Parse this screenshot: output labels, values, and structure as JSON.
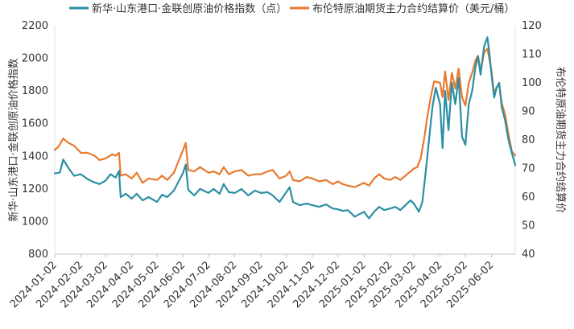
{
  "chart_data": {
    "type": "line",
    "legend": {
      "placement": "top",
      "entries": [
        {
          "label": "新华·山东港口·金联创原油价格指数（点）",
          "color": "#2a8fa3"
        },
        {
          "label": "布伦特原油期货主力合约结算价（美元/桶）",
          "color": "#e8792e"
        }
      ]
    },
    "y_left": {
      "label": "新华·山东港口·金联创原油价格指数",
      "ylim": [
        800,
        2200
      ],
      "ticks": [
        "800",
        "1000",
        "1200",
        "1400",
        "1600",
        "1800",
        "2000",
        "2200"
      ]
    },
    "y_right": {
      "label": "布伦特原油期货主力合约结算价",
      "ylim": [
        40,
        120
      ],
      "ticks": [
        "40",
        "50",
        "60",
        "70",
        "80",
        "90",
        "100",
        "110",
        "120"
      ]
    },
    "x_ticks": [
      "2024-01-02",
      "2024-02-02",
      "2024-03-02",
      "2024-04-02",
      "2024-05-02",
      "2024-06-02",
      "2024-07-02",
      "2024-08-02",
      "2024-09-02",
      "2024-10-02",
      "2024-11-02",
      "2024-12-02",
      "2025-01-02",
      "2025-02-02",
      "2025-03-02",
      "2025-04-02",
      "2025-05-02",
      "2025-06-02"
    ],
    "x_range": [
      "2024-01-02",
      "2025-06-30"
    ],
    "grid": false,
    "series": [
      {
        "name": "新华·山东港口·金联创原油价格指数（点）",
        "axis": "left",
        "color": "#2a8fa3",
        "points": [
          [
            "2024-01-02",
            1295
          ],
          [
            "2024-01-08",
            1300
          ],
          [
            "2024-01-12",
            1380
          ],
          [
            "2024-01-18",
            1330
          ],
          [
            "2024-01-25",
            1280
          ],
          [
            "2024-02-02",
            1290
          ],
          [
            "2024-02-10",
            1260
          ],
          [
            "2024-02-18",
            1240
          ],
          [
            "2024-02-24",
            1230
          ],
          [
            "2024-03-02",
            1250
          ],
          [
            "2024-03-08",
            1290
          ],
          [
            "2024-03-14",
            1270
          ],
          [
            "2024-03-18",
            1310
          ],
          [
            "2024-03-20",
            1150
          ],
          [
            "2024-03-26",
            1170
          ],
          [
            "2024-04-02",
            1140
          ],
          [
            "2024-04-08",
            1170
          ],
          [
            "2024-04-15",
            1130
          ],
          [
            "2024-04-22",
            1150
          ],
          [
            "2024-05-02",
            1120
          ],
          [
            "2024-05-08",
            1165
          ],
          [
            "2024-05-14",
            1150
          ],
          [
            "2024-05-22",
            1190
          ],
          [
            "2024-05-28",
            1250
          ],
          [
            "2024-06-02",
            1300
          ],
          [
            "2024-06-05",
            1350
          ],
          [
            "2024-06-08",
            1195
          ],
          [
            "2024-06-15",
            1160
          ],
          [
            "2024-06-22",
            1200
          ],
          [
            "2024-07-02",
            1175
          ],
          [
            "2024-07-08",
            1200
          ],
          [
            "2024-07-15",
            1170
          ],
          [
            "2024-07-20",
            1230
          ],
          [
            "2024-07-26",
            1180
          ],
          [
            "2024-08-02",
            1175
          ],
          [
            "2024-08-10",
            1200
          ],
          [
            "2024-08-18",
            1160
          ],
          [
            "2024-08-26",
            1190
          ],
          [
            "2024-09-02",
            1175
          ],
          [
            "2024-09-10",
            1180
          ],
          [
            "2024-09-16",
            1160
          ],
          [
            "2024-09-24",
            1120
          ],
          [
            "2024-10-02",
            1180
          ],
          [
            "2024-10-06",
            1210
          ],
          [
            "2024-10-10",
            1120
          ],
          [
            "2024-10-18",
            1100
          ],
          [
            "2024-10-26",
            1110
          ],
          [
            "2024-11-02",
            1100
          ],
          [
            "2024-11-10",
            1090
          ],
          [
            "2024-11-18",
            1105
          ],
          [
            "2024-11-26",
            1080
          ],
          [
            "2024-12-02",
            1075
          ],
          [
            "2024-12-08",
            1065
          ],
          [
            "2024-12-14",
            1070
          ],
          [
            "2024-12-22",
            1030
          ],
          [
            "2025-01-02",
            1060
          ],
          [
            "2025-01-08",
            1020
          ],
          [
            "2025-01-14",
            1060
          ],
          [
            "2025-01-20",
            1090
          ],
          [
            "2025-01-26",
            1070
          ],
          [
            "2025-02-02",
            1080
          ],
          [
            "2025-02-08",
            1090
          ],
          [
            "2025-02-14",
            1070
          ],
          [
            "2025-02-20",
            1100
          ],
          [
            "2025-02-26",
            1130
          ],
          [
            "2025-03-02",
            1110
          ],
          [
            "2025-03-08",
            1060
          ],
          [
            "2025-03-12",
            1120
          ],
          [
            "2025-03-16",
            1300
          ],
          [
            "2025-03-20",
            1500
          ],
          [
            "2025-03-24",
            1700
          ],
          [
            "2025-03-28",
            1820
          ],
          [
            "2025-04-02",
            1720
          ],
          [
            "2025-04-05",
            1450
          ],
          [
            "2025-04-08",
            1800
          ],
          [
            "2025-04-12",
            1560
          ],
          [
            "2025-04-16",
            1850
          ],
          [
            "2025-04-20",
            1720
          ],
          [
            "2025-04-24",
            1880
          ],
          [
            "2025-04-28",
            1520
          ],
          [
            "2025-05-02",
            1470
          ],
          [
            "2025-05-06",
            1720
          ],
          [
            "2025-05-10",
            1800
          ],
          [
            "2025-05-14",
            1950
          ],
          [
            "2025-05-17",
            2010
          ],
          [
            "2025-05-20",
            1900
          ],
          [
            "2025-05-24",
            2070
          ],
          [
            "2025-05-28",
            2130
          ],
          [
            "2025-05-30",
            2050
          ],
          [
            "2025-06-02",
            1900
          ],
          [
            "2025-06-05",
            1760
          ],
          [
            "2025-06-08",
            1820
          ],
          [
            "2025-06-11",
            1850
          ],
          [
            "2025-06-14",
            1700
          ],
          [
            "2025-06-18",
            1620
          ],
          [
            "2025-06-22",
            1500
          ],
          [
            "2025-06-26",
            1420
          ],
          [
            "2025-06-30",
            1345
          ]
        ]
      },
      {
        "name": "布伦特原油期货主力合约结算价（美元/桶）",
        "axis": "right",
        "color": "#e8792e",
        "points": [
          [
            "2024-01-02",
            76.5
          ],
          [
            "2024-01-06",
            77.5
          ],
          [
            "2024-01-12",
            80.5
          ],
          [
            "2024-01-18",
            79.0
          ],
          [
            "2024-01-25",
            78.0
          ],
          [
            "2024-02-02",
            75.5
          ],
          [
            "2024-02-10",
            75.5
          ],
          [
            "2024-02-18",
            74.5
          ],
          [
            "2024-02-24",
            73.0
          ],
          [
            "2024-03-02",
            73.5
          ],
          [
            "2024-03-10",
            75.0
          ],
          [
            "2024-03-14",
            74.5
          ],
          [
            "2024-03-18",
            75.5
          ],
          [
            "2024-03-20",
            67.5
          ],
          [
            "2024-03-26",
            68.0
          ],
          [
            "2024-04-02",
            66.5
          ],
          [
            "2024-04-08",
            68.5
          ],
          [
            "2024-04-15",
            65.0
          ],
          [
            "2024-04-22",
            66.5
          ],
          [
            "2024-05-02",
            66.0
          ],
          [
            "2024-05-08",
            67.5
          ],
          [
            "2024-05-14",
            66.0
          ],
          [
            "2024-05-22",
            68.5
          ],
          [
            "2024-05-28",
            73.0
          ],
          [
            "2024-06-02",
            76.5
          ],
          [
            "2024-06-05",
            79.0
          ],
          [
            "2024-06-08",
            69.5
          ],
          [
            "2024-06-15",
            69.0
          ],
          [
            "2024-06-22",
            70.5
          ],
          [
            "2024-07-02",
            68.5
          ],
          [
            "2024-07-08",
            69.0
          ],
          [
            "2024-07-15",
            68.0
          ],
          [
            "2024-07-20",
            70.5
          ],
          [
            "2024-07-26",
            68.0
          ],
          [
            "2024-08-02",
            69.0
          ],
          [
            "2024-08-10",
            69.5
          ],
          [
            "2024-08-18",
            67.5
          ],
          [
            "2024-08-26",
            68.0
          ],
          [
            "2024-09-02",
            68.0
          ],
          [
            "2024-09-10",
            69.0
          ],
          [
            "2024-09-16",
            69.5
          ],
          [
            "2024-09-24",
            66.5
          ],
          [
            "2024-10-02",
            67.5
          ],
          [
            "2024-10-06",
            69.0
          ],
          [
            "2024-10-10",
            66.0
          ],
          [
            "2024-10-18",
            65.5
          ],
          [
            "2024-10-26",
            67.0
          ],
          [
            "2024-11-02",
            66.5
          ],
          [
            "2024-11-10",
            65.5
          ],
          [
            "2024-11-18",
            66.0
          ],
          [
            "2024-11-26",
            64.5
          ],
          [
            "2024-12-02",
            65.5
          ],
          [
            "2024-12-08",
            64.5
          ],
          [
            "2024-12-14",
            64.0
          ],
          [
            "2024-12-22",
            63.5
          ],
          [
            "2025-01-02",
            65.0
          ],
          [
            "2025-01-08",
            64.0
          ],
          [
            "2025-01-14",
            66.5
          ],
          [
            "2025-01-20",
            68.0
          ],
          [
            "2025-01-26",
            66.5
          ],
          [
            "2025-02-02",
            66.0
          ],
          [
            "2025-02-08",
            67.0
          ],
          [
            "2025-02-14",
            66.0
          ],
          [
            "2025-02-20",
            67.5
          ],
          [
            "2025-02-26",
            69.0
          ],
          [
            "2025-03-02",
            70.0
          ],
          [
            "2025-03-06",
            70.5
          ],
          [
            "2025-03-10",
            73.5
          ],
          [
            "2025-03-14",
            80.0
          ],
          [
            "2025-03-18",
            88.0
          ],
          [
            "2025-03-22",
            95.0
          ],
          [
            "2025-03-26",
            100.5
          ],
          [
            "2025-04-02",
            100.0
          ],
          [
            "2025-04-05",
            95.0
          ],
          [
            "2025-04-08",
            104.0
          ],
          [
            "2025-04-12",
            94.0
          ],
          [
            "2025-04-16",
            103.5
          ],
          [
            "2025-04-20",
            98.0
          ],
          [
            "2025-04-24",
            105.0
          ],
          [
            "2025-04-28",
            95.0
          ],
          [
            "2025-05-02",
            92.0
          ],
          [
            "2025-05-06",
            100.0
          ],
          [
            "2025-05-10",
            103.5
          ],
          [
            "2025-05-14",
            108.0
          ],
          [
            "2025-05-17",
            109.5
          ],
          [
            "2025-05-20",
            104.0
          ],
          [
            "2025-05-24",
            110.5
          ],
          [
            "2025-05-28",
            112.0
          ],
          [
            "2025-05-30",
            109.0
          ],
          [
            "2025-06-02",
            104.0
          ],
          [
            "2025-06-05",
            96.0
          ],
          [
            "2025-06-08",
            98.5
          ],
          [
            "2025-06-11",
            99.5
          ],
          [
            "2025-06-14",
            93.0
          ],
          [
            "2025-06-18",
            89.0
          ],
          [
            "2025-06-22",
            82.0
          ],
          [
            "2025-06-26",
            76.0
          ],
          [
            "2025-06-30",
            74.5
          ]
        ]
      }
    ]
  }
}
